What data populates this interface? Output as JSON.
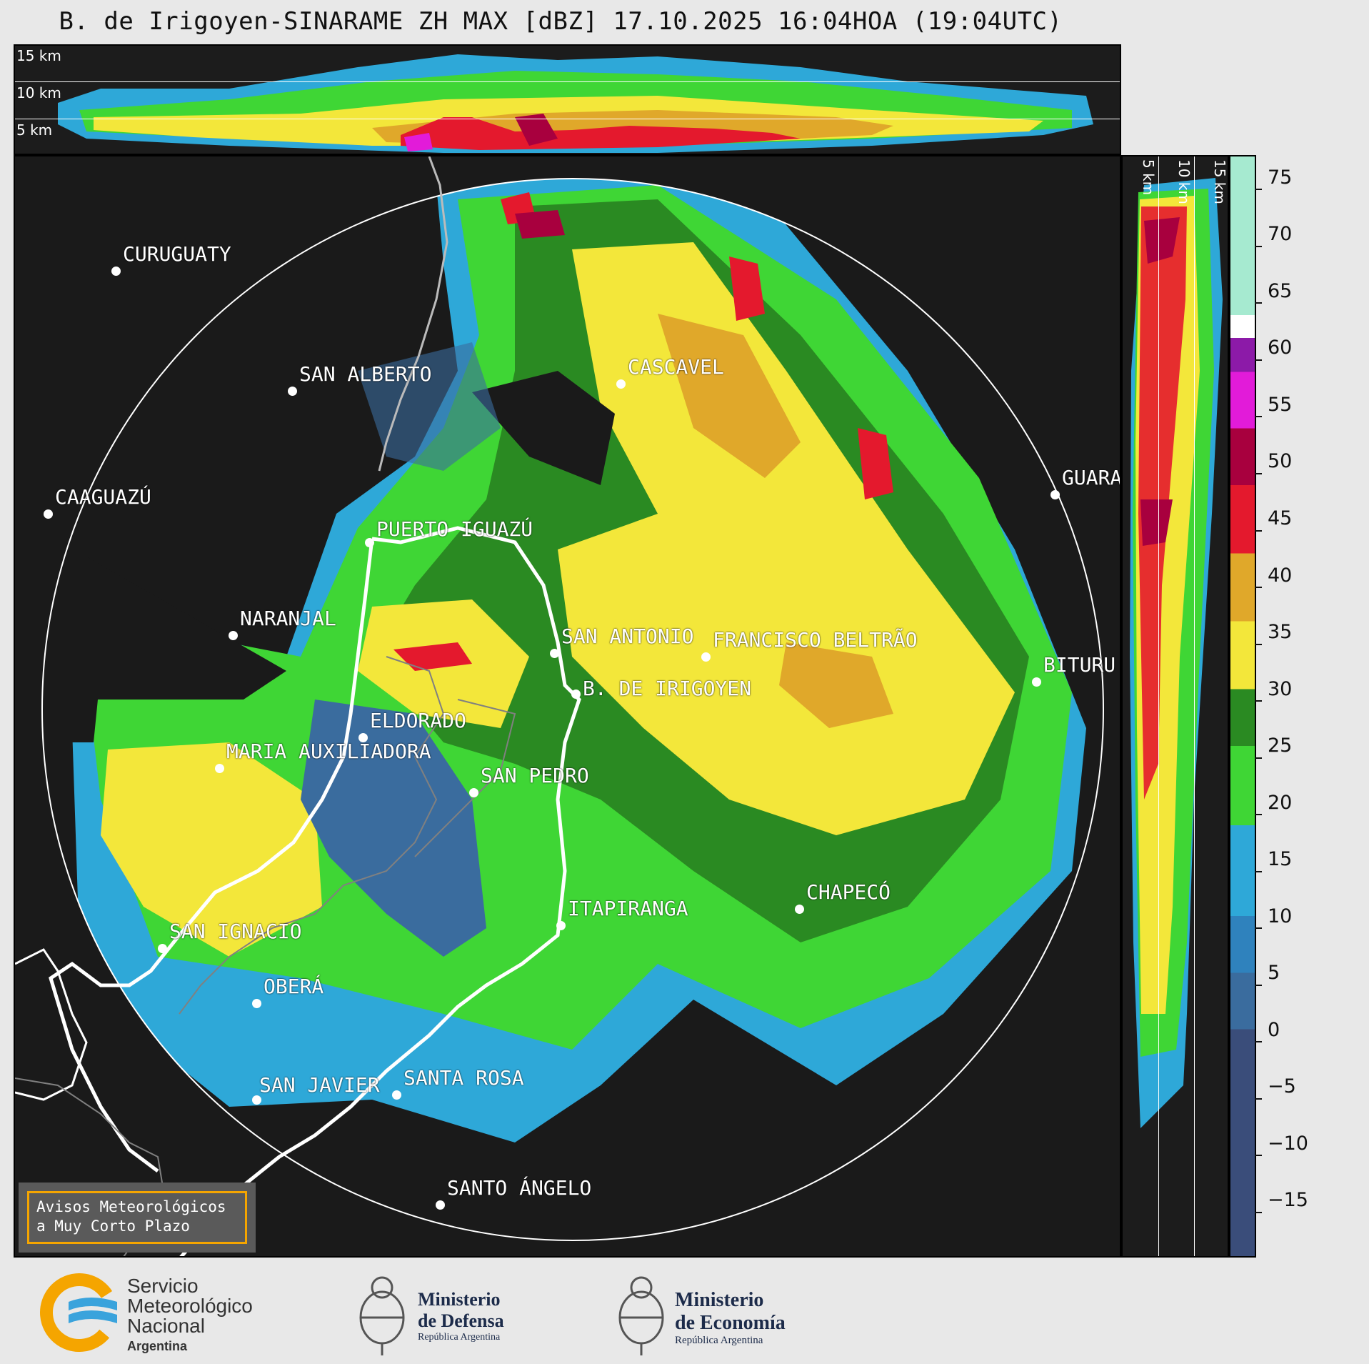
{
  "title": "B. de Irigoyen-SINARAME ZH MAX [dBZ] 17.10.2025 16:04HOA (19:04UTC)",
  "top_panel": {
    "alt_labels": [
      "15 km",
      "10 km",
      "5 km"
    ]
  },
  "right_panel": {
    "alt_labels": [
      "5 km",
      "10 km",
      "15 km"
    ]
  },
  "colorbar": {
    "unit": "dBZ",
    "ticks": [
      "75",
      "70",
      "65",
      "60",
      "55",
      "50",
      "45",
      "40",
      "35",
      "30",
      "25",
      "20",
      "15",
      "10",
      "5",
      "0",
      "−5",
      "−10",
      "−15"
    ],
    "tick_values": [
      75,
      70,
      65,
      60,
      55,
      50,
      45,
      40,
      35,
      30,
      25,
      20,
      15,
      10,
      5,
      0,
      -5,
      -10,
      -15
    ],
    "range": [
      -20,
      77
    ],
    "stops": [
      {
        "from": -20,
        "to": 0,
        "color": "#3a4d7a"
      },
      {
        "from": 0,
        "to": 5,
        "color": "#3a6c9e"
      },
      {
        "from": 5,
        "to": 10,
        "color": "#2f82bd"
      },
      {
        "from": 10,
        "to": 18,
        "color": "#2ea8d8"
      },
      {
        "from": 18,
        "to": 25,
        "color": "#3fd635"
      },
      {
        "from": 25,
        "to": 30,
        "color": "#2a8a22"
      },
      {
        "from": 30,
        "to": 36,
        "color": "#f3e73a"
      },
      {
        "from": 36,
        "to": 42,
        "color": "#e0a82a"
      },
      {
        "from": 42,
        "to": 48,
        "color": "#e4192d"
      },
      {
        "from": 48,
        "to": 53,
        "color": "#a8003e"
      },
      {
        "from": 53,
        "to": 58,
        "color": "#e21bd9"
      },
      {
        "from": 58,
        "to": 61,
        "color": "#8c1aa8"
      },
      {
        "from": 61,
        "to": 63,
        "color": "#ffffff"
      },
      {
        "from": 63,
        "to": 77,
        "color": "#a6ead0"
      }
    ]
  },
  "cities": [
    {
      "name": "CURUGUATY"
    },
    {
      "name": "SAN ALBERTO"
    },
    {
      "name": "CASCAVEL"
    },
    {
      "name": "CAAGUAZÚ"
    },
    {
      "name": "GUARA"
    },
    {
      "name": "PUERTO IGUAZÚ"
    },
    {
      "name": "NARANJAL"
    },
    {
      "name": "SAN ANTONIO"
    },
    {
      "name": "FRANCISCO BELTRÃO"
    },
    {
      "name": "BITURU"
    },
    {
      "name": "B. DE IRIGOYEN"
    },
    {
      "name": "ELDORADO"
    },
    {
      "name": "MARIA AUXILIADORA"
    },
    {
      "name": "SAN PEDRO"
    },
    {
      "name": "CHAPECÓ"
    },
    {
      "name": "ITAPIRANGA"
    },
    {
      "name": "SAN IGNACIO"
    },
    {
      "name": "OBERÁ"
    },
    {
      "name": "SAN JAVIER"
    },
    {
      "name": "SANTA ROSA"
    },
    {
      "name": "SANTO ÁNGELO"
    }
  ],
  "notice": {
    "line1": "Avisos Meteorológicos",
    "line2": "a Muy Corto Plazo"
  },
  "footer": {
    "smn": {
      "line1": "Servicio",
      "line2": "Meteorológico",
      "line3": "Nacional",
      "line4": "Argentina"
    },
    "defensa": {
      "line1": "Ministerio",
      "line2": "de Defensa",
      "line3": "República Argentina"
    },
    "economia": {
      "line1": "Ministerio",
      "line2": "de Economía",
      "line3": "República Argentina"
    }
  }
}
